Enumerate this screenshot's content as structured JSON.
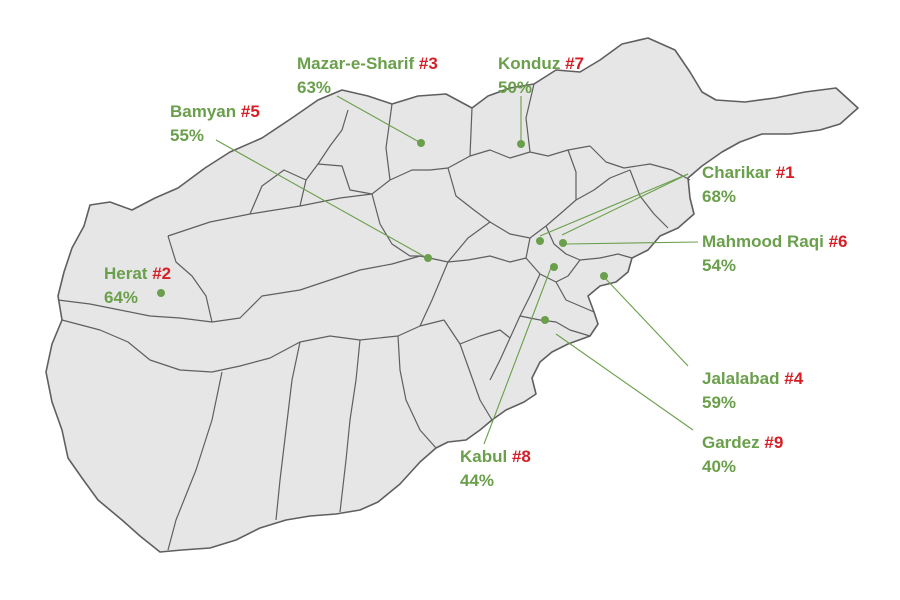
{
  "map": {
    "colors": {
      "land": "#e6e6e6",
      "border": "#5f5f5f",
      "marker": "#6a9f4b",
      "rank": "#d41f26",
      "percent": "#6a9f4b"
    },
    "cities": [
      {
        "id": "charikar",
        "name": "Charikar",
        "rank": "#1",
        "percent": "68%"
      },
      {
        "id": "herat",
        "name": "Herat",
        "rank": "#2",
        "percent": "64%"
      },
      {
        "id": "mazar",
        "name": "Mazar-e-Sharif",
        "rank": "#3",
        "percent": "63%"
      },
      {
        "id": "jalalabad",
        "name": "Jalalabad",
        "rank": "#4",
        "percent": "59%"
      },
      {
        "id": "bamyan",
        "name": "Bamyan",
        "rank": "#5",
        "percent": "55%"
      },
      {
        "id": "mahmood",
        "name": "Mahmood Raqi",
        "rank": "#6",
        "percent": "54%"
      },
      {
        "id": "konduz",
        "name": "Konduz",
        "rank": "#7",
        "percent": "50%"
      },
      {
        "id": "kabul",
        "name": "Kabul",
        "rank": "#8",
        "percent": "44%"
      },
      {
        "id": "gardez",
        "name": "Gardez",
        "rank": "#9",
        "percent": "40%"
      }
    ]
  }
}
